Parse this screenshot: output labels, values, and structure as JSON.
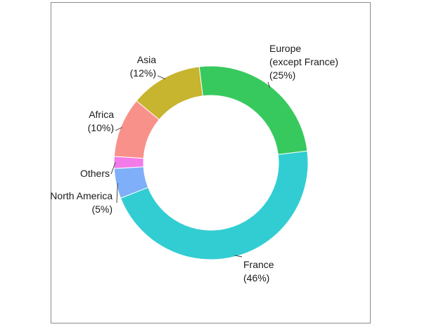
{
  "chart_data": {
    "type": "pie",
    "style": "donut",
    "legend": "none",
    "slices": [
      {
        "label": "Europe\n(except France)\n(25%)",
        "value": 25,
        "color": "#38C95E"
      },
      {
        "label": "France\n(46%)",
        "value": 46,
        "color": "#32CDD2"
      },
      {
        "label": "North America\n(5%)",
        "value": 5,
        "color": "#7FAFF8"
      },
      {
        "label": "Others",
        "value": 2,
        "color": "#F27BE9"
      },
      {
        "label": "Africa\n(10%)",
        "value": 10,
        "color": "#F8918A"
      },
      {
        "label": "Asia\n(12%)",
        "value": 12,
        "color": "#C7B42F"
      }
    ]
  }
}
